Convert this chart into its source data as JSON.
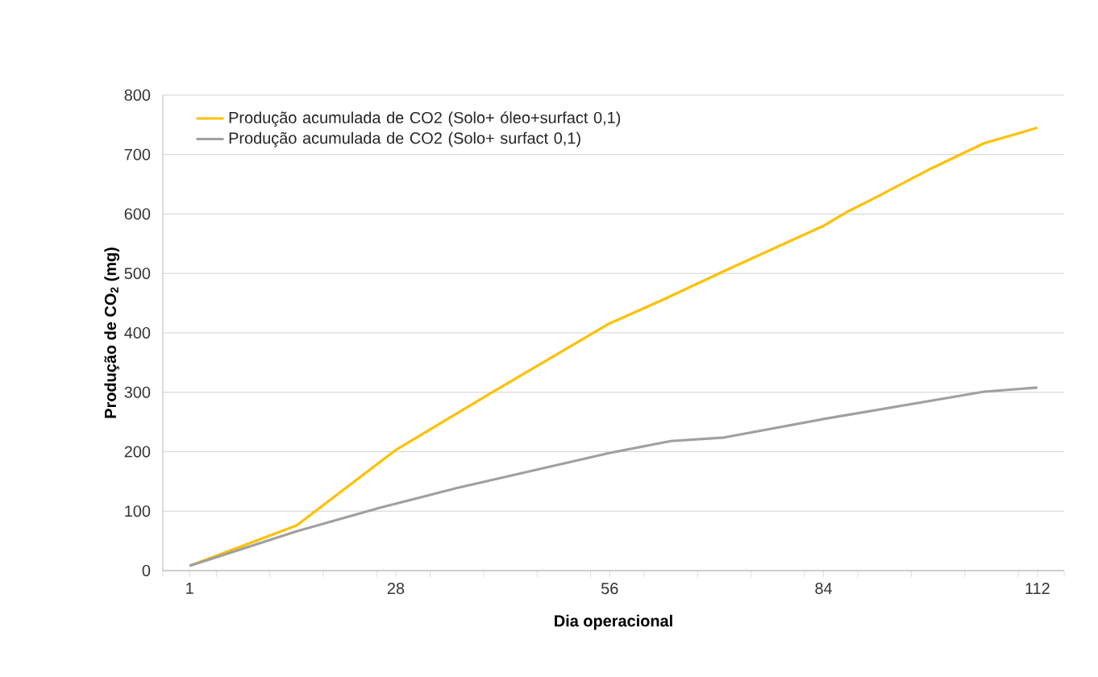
{
  "chart_data": {
    "type": "line",
    "xlabel": "Dia operacional",
    "ylabel": "Produção de CO$_{2}$ (mg)",
    "xlim": [
      -2.5,
      115.5
    ],
    "xticks": [
      1,
      28,
      56,
      84,
      112,
      {
        "value": -2.5,
        "label": null
      },
      {
        "value": 4.5,
        "label": null
      },
      {
        "value": 11.5,
        "label": null
      },
      {
        "value": 18.5,
        "label": null
      },
      {
        "value": 25.5,
        "label": null
      },
      {
        "value": 32.5,
        "label": null
      },
      {
        "value": 39.5,
        "label": null
      },
      {
        "value": 46.5,
        "label": null
      },
      {
        "value": 53.5,
        "label": null
      },
      {
        "value": 60.5,
        "label": null
      },
      {
        "value": 67.5,
        "label": null
      },
      {
        "value": 74.5,
        "label": null
      },
      {
        "value": 81.5,
        "label": null
      },
      {
        "value": 88.5,
        "label": null
      },
      {
        "value": 95.5,
        "label": null
      },
      {
        "value": 102.5,
        "label": null
      },
      {
        "value": 109.5,
        "label": null
      },
      {
        "value": 115.5,
        "label": null
      }
    ],
    "ylim": [
      0,
      800
    ],
    "yticks": [
      0,
      100,
      200,
      300,
      400,
      500,
      600,
      700,
      800
    ],
    "grid": "y",
    "legend": "top left",
    "marker": "none",
    "line_style": "solid",
    "series": [
      {
        "name": "Produção acumulada de CO2 (Solo+ óleo+surfact 0,1)",
        "color": "#ffc000",
        "x": [
          1,
          15,
          28,
          41,
          56,
          63,
          71,
          84,
          87,
          91,
          98,
          105,
          112
        ],
        "values": [
          8,
          76,
          203,
          303,
          416,
          456,
          504,
          580,
          603,
          629,
          676,
          719,
          745
        ]
      },
      {
        "name": "Produção acumulada de CO2 (Solo+ surfact 0,1)",
        "color": "#a0a0a0",
        "x": [
          1,
          15,
          26,
          36,
          56,
          64,
          71,
          84,
          105,
          112
        ],
        "values": [
          8,
          66,
          106,
          139,
          198,
          218,
          224,
          255,
          301,
          308
        ]
      }
    ]
  }
}
